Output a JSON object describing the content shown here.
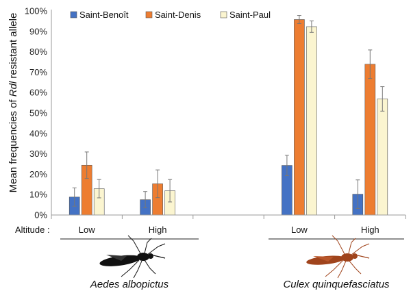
{
  "chart_data": {
    "type": "bar",
    "ylabel": {
      "prefix": "Mean frequencies of ",
      "italic": "Rdl",
      "suffix": " resistant allele"
    },
    "ylim": [
      0,
      100
    ],
    "y_ticks": [
      "0%",
      "10%",
      "20%",
      "30%",
      "40%",
      "50%",
      "60%",
      "70%",
      "80%",
      "90%",
      "100%"
    ],
    "legend_position": "top-left",
    "altitude_label": "Altitude :",
    "categories": [
      "Low",
      "High",
      "",
      "Low",
      "High"
    ],
    "species": [
      "Aedes albopictus",
      "Culex quinquefasciatus"
    ],
    "series": [
      {
        "name": "Saint-Benoît",
        "color": "#4472c4",
        "values": [
          8.8,
          7.5,
          null,
          24.3,
          10.2
        ],
        "errors": [
          4.5,
          4.0,
          null,
          5.0,
          7.0
        ]
      },
      {
        "name": "Saint-Denis",
        "color": "#ed7d31",
        "values": [
          24.4,
          15.3,
          null,
          95.8,
          73.9
        ],
        "errors": [
          6.5,
          6.8,
          null,
          2.0,
          7.0
        ]
      },
      {
        "name": "Saint-Paul",
        "color": "#fbf5d0",
        "values": [
          12.9,
          11.9,
          null,
          92.3,
          56.9
        ],
        "errors": [
          4.5,
          5.5,
          null,
          2.8,
          6.0
        ]
      }
    ]
  }
}
